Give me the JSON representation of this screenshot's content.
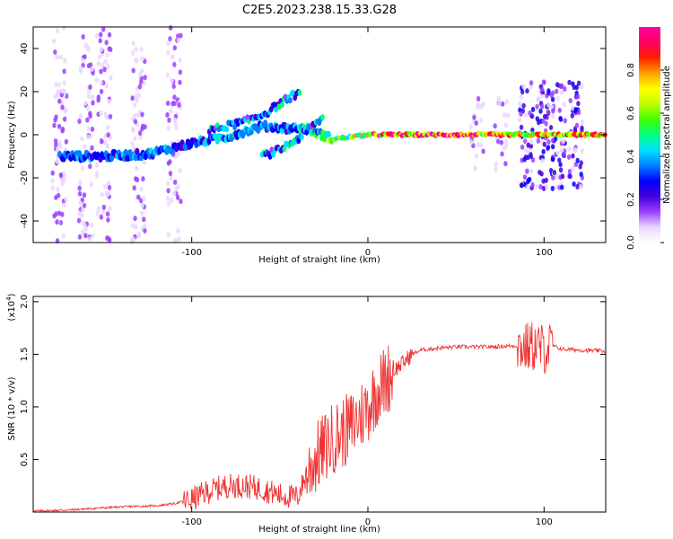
{
  "figure": {
    "title": "C2E5.2023.238.15.33.G28"
  },
  "chart_data": [
    {
      "type": "heatmap",
      "xlabel": "Height of straight line (km)",
      "ylabel": "Frequency (Hz)",
      "xlim": [
        -190,
        135
      ],
      "ylim": [
        -50,
        50
      ],
      "x_ticks": [
        -100,
        0,
        100
      ],
      "y_ticks": [
        -40,
        -20,
        0,
        20,
        40
      ],
      "colorbar": {
        "label": "Normalized spectral amplitude",
        "range": [
          0,
          1
        ],
        "ticks": [
          0.0,
          0.2,
          0.4,
          0.6,
          0.8
        ],
        "colormap": [
          "#ffffff",
          "#e8d8ff",
          "#9a40ff",
          "#4400dd",
          "#0000ff",
          "#0080ff",
          "#00e0ff",
          "#00ff80",
          "#40ff00",
          "#c0ff00",
          "#ffff00",
          "#ffa000",
          "#ff2000",
          "#ff0060",
          "#ff00a0"
        ]
      },
      "signal_track": {
        "description_points": [
          {
            "x": -175,
            "y": -10,
            "amp": 0.35
          },
          {
            "x": -150,
            "y": -10,
            "amp": 0.35
          },
          {
            "x": -125,
            "y": -9,
            "amp": 0.35
          },
          {
            "x": -100,
            "y": -4,
            "amp": 0.35
          },
          {
            "x": -80,
            "y": -1,
            "amp": 0.4
          },
          {
            "x": -60,
            "y": 4,
            "amp": 0.35
          },
          {
            "x": -45,
            "y": 3,
            "amp": 0.35
          },
          {
            "x": -35,
            "y": 3,
            "amp": 0.45
          },
          {
            "x": -20,
            "y": -2,
            "amp": 0.55
          },
          {
            "x": 0,
            "y": 0,
            "amp": 0.8
          },
          {
            "x": 20,
            "y": 0,
            "amp": 0.9
          },
          {
            "x": 60,
            "y": 0,
            "amp": 0.9
          },
          {
            "x": 90,
            "y": 0,
            "amp": 0.8
          },
          {
            "x": 110,
            "y": 0,
            "amp": 0.75
          },
          {
            "x": 135,
            "y": 0,
            "amp": 0.85
          }
        ],
        "upper_branch": [
          {
            "x": -90,
            "y": 2
          },
          {
            "x": -70,
            "y": 6
          },
          {
            "x": -58,
            "y": 10
          },
          {
            "x": -45,
            "y": 17
          },
          {
            "x": -38,
            "y": 20
          }
        ],
        "lower_branch": [
          {
            "x": -60,
            "y": -10
          },
          {
            "x": -50,
            "y": -7
          },
          {
            "x": -40,
            "y": -2
          },
          {
            "x": -30,
            "y": 5
          },
          {
            "x": -25,
            "y": 8
          }
        ],
        "noise_columns": [
          -175,
          -160,
          -150,
          -130,
          -110,
          62,
          76,
          90,
          100,
          108,
          118
        ]
      }
    },
    {
      "type": "line",
      "xlabel": "Height of straight line (km)",
      "ylabel": "SNR (10 * v/v)",
      "y_scale_label": "(x10",
      "y_scale_exponent": "4",
      "y_scale_close": ")",
      "xlim": [
        -190,
        135
      ],
      "ylim": [
        0,
        2.05
      ],
      "x_ticks": [
        -100,
        0,
        100
      ],
      "y_ticks": [
        0.5,
        1.0,
        1.5,
        2.0
      ],
      "y_tick_labels": [
        "0.5",
        "1.0",
        "1.5",
        "2.0"
      ],
      "color": "#ee3333",
      "series": [
        {
          "x": [
            -190,
            -170,
            -150,
            -140,
            -120,
            -110,
            -100,
            -90,
            -80,
            -70,
            -60,
            -50,
            -40,
            -35,
            -30,
            -25,
            -20,
            -15,
            -10,
            -5,
            0,
            5,
            10,
            15,
            20,
            25,
            30,
            40,
            50,
            60,
            70,
            80,
            85,
            90,
            95,
            100,
            105,
            110,
            120,
            135
          ],
          "y": [
            0.01,
            0.02,
            0.04,
            0.05,
            0.06,
            0.08,
            0.12,
            0.2,
            0.25,
            0.25,
            0.22,
            0.16,
            0.14,
            0.35,
            0.5,
            0.6,
            0.7,
            0.75,
            0.8,
            0.9,
            1.0,
            1.15,
            1.25,
            1.35,
            1.42,
            1.5,
            1.54,
            1.56,
            1.57,
            1.57,
            1.57,
            1.58,
            1.58,
            1.56,
            1.58,
            1.55,
            1.58,
            1.55,
            1.54,
            1.53
          ]
        }
      ]
    }
  ]
}
